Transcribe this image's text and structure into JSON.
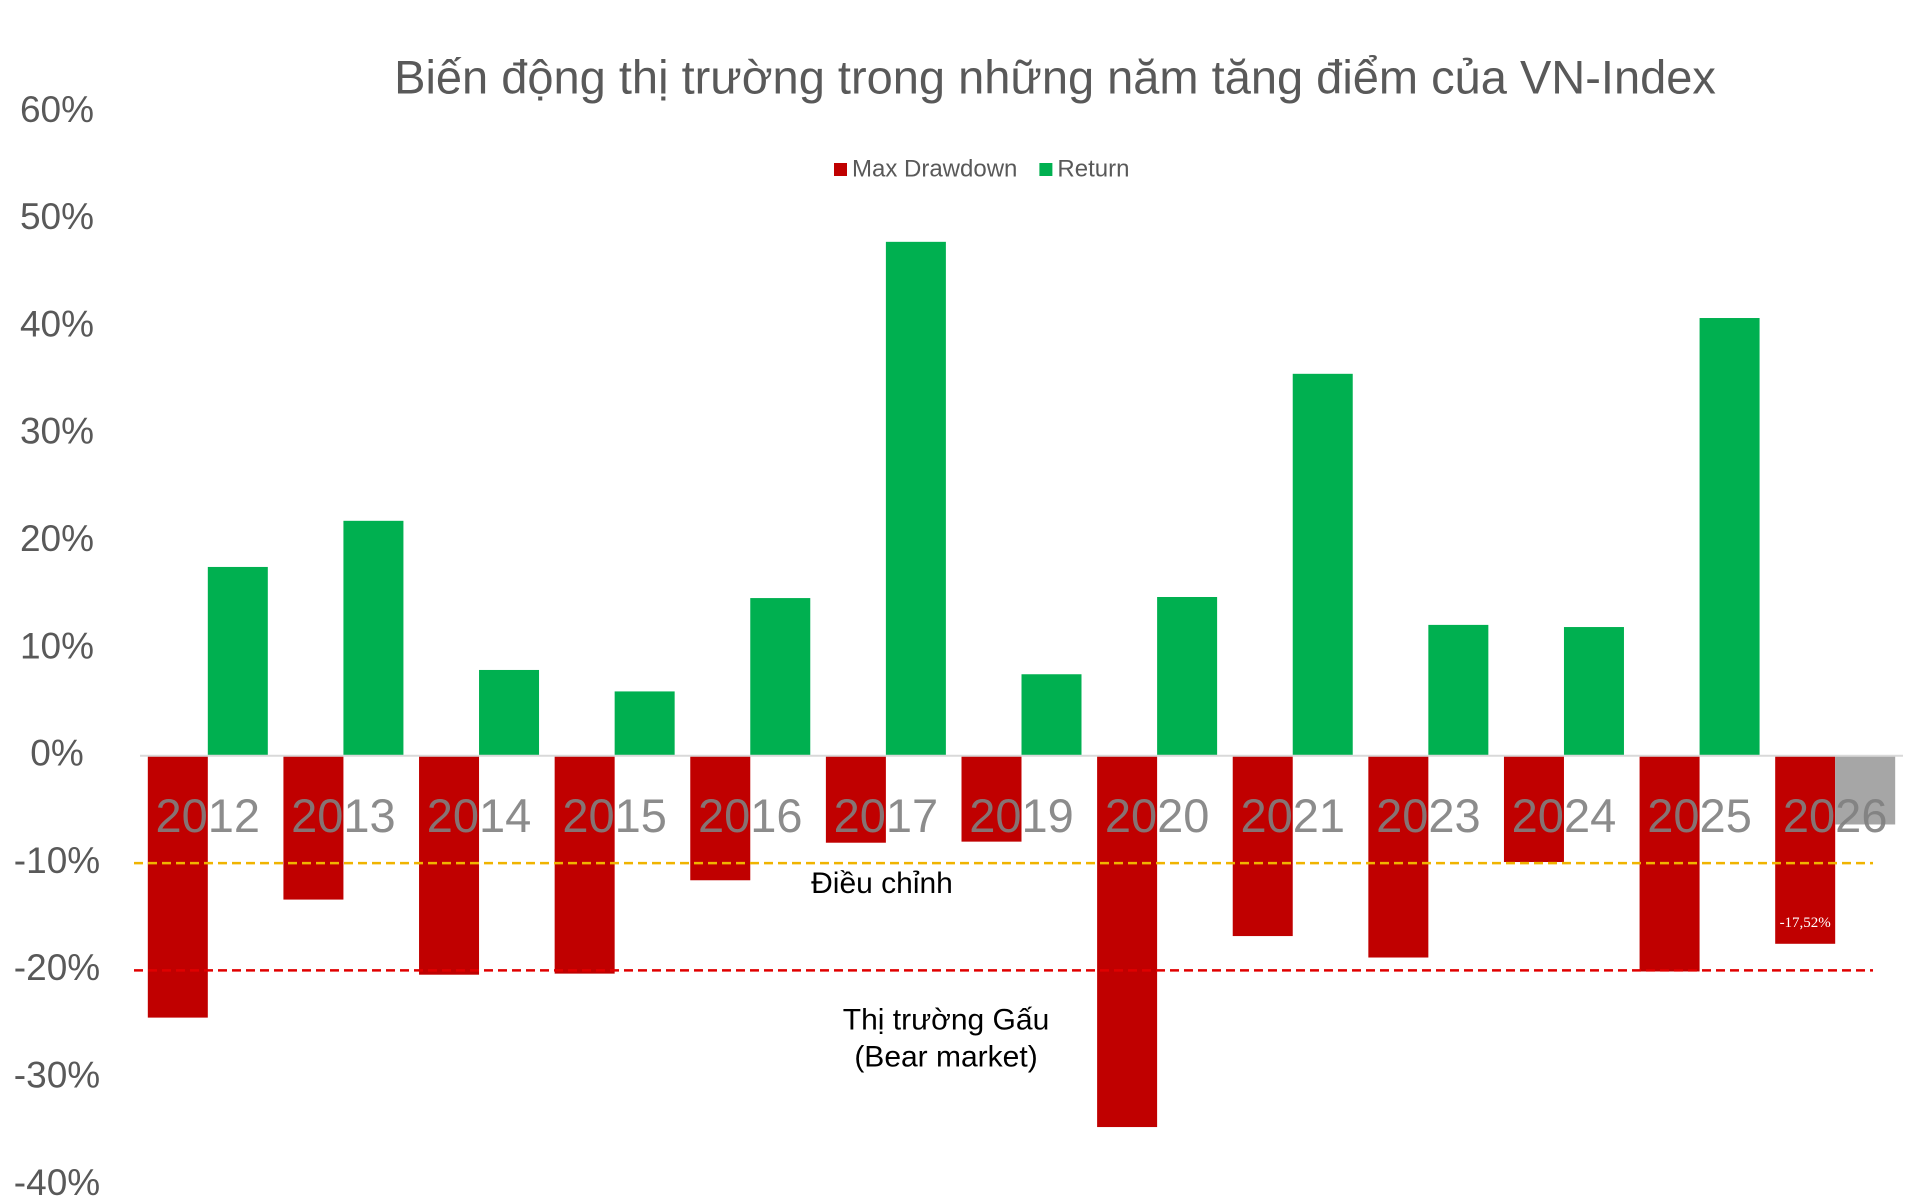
{
  "chart_data": {
    "type": "bar",
    "title": "Biến động thị trường trong những năm tăng điểm của VN-Index",
    "categories": [
      "2012",
      "2013",
      "2014",
      "2015",
      "2016",
      "2017",
      "2019",
      "2020",
      "2021",
      "2023",
      "2024",
      "2025",
      "2026"
    ],
    "series": [
      {
        "name": "Max Drawdown",
        "color": "#c00000",
        "values": [
          -24.4,
          -13.4,
          -20.4,
          -20.3,
          -11.6,
          -8.1,
          -8.0,
          -34.6,
          -16.8,
          -18.8,
          -9.9,
          -20.1,
          -17.52
        ],
        "value_labels": [
          null,
          null,
          null,
          null,
          null,
          null,
          null,
          null,
          null,
          null,
          null,
          null,
          "-17,52%"
        ]
      },
      {
        "name": "Return",
        "color": "#00b050",
        "colors": [
          "#00b050",
          "#00b050",
          "#00b050",
          "#00b050",
          "#00b050",
          "#00b050",
          "#00b050",
          "#00b050",
          "#00b050",
          "#00b050",
          "#00b050",
          "#00b050",
          "#a6a6a6"
        ],
        "values": [
          17.6,
          21.9,
          8.0,
          6.0,
          14.7,
          47.9,
          7.6,
          14.8,
          35.6,
          12.2,
          12.0,
          40.8,
          -6.4
        ]
      }
    ],
    "ylim": [
      -40,
      60
    ],
    "yticks": [
      {
        "value": -40,
        "label": "-40%"
      },
      {
        "value": -30,
        "label": "-30%"
      },
      {
        "value": -20,
        "label": "-20%"
      },
      {
        "value": -10,
        "label": "-10%"
      },
      {
        "value": 0,
        "label": "0%"
      },
      {
        "value": 10,
        "label": "10%"
      },
      {
        "value": 20,
        "label": "20%"
      },
      {
        "value": 30,
        "label": "30%"
      },
      {
        "value": 40,
        "label": "40%"
      },
      {
        "value": 50,
        "label": "50%"
      },
      {
        "value": 60,
        "label": "60%"
      }
    ],
    "reference_lines": [
      {
        "value": -10,
        "color": "#f0b400",
        "labels": [
          "Điều chỉnh"
        ]
      },
      {
        "value": -20,
        "color": "#e00000",
        "labels": [
          "Thị trường Gấu",
          "(Bear market)"
        ]
      }
    ],
    "legend": "top"
  }
}
